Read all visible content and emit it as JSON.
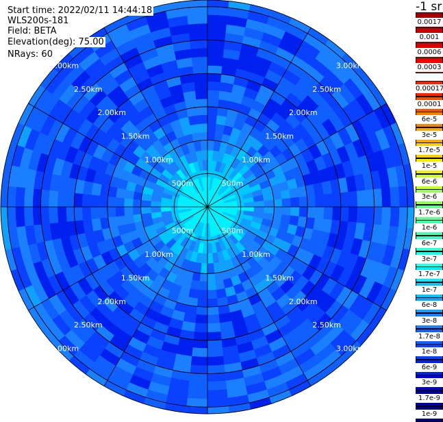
{
  "header": {
    "start_time": "Start time: 2022/02/11 14:44:18",
    "instrument": "WLS200s-181",
    "field": "Field: BETA",
    "elevation": "Elevation(deg): 75.00",
    "nrays": "NRays: 60"
  },
  "colorbar": {
    "units_label": "-1 sr",
    "upper_segment": [
      {
        "label": "0.0017",
        "color": "#a00000"
      },
      {
        "label": "0.001",
        "color": "#c40000"
      },
      {
        "label": "0.0006",
        "color": "#dd0000"
      },
      {
        "label": "0.0003",
        "color": "#f00000"
      }
    ],
    "lower_segment": [
      {
        "label": "0.00017",
        "color": "#ff2000"
      },
      {
        "label": "0.0001",
        "color": "#ff5000"
      },
      {
        "label": "6e-5",
        "color": "#ff8000"
      },
      {
        "label": "3e-5",
        "color": "#ffa800"
      },
      {
        "label": "1.7e-5",
        "color": "#ffd000"
      },
      {
        "label": "1e-5",
        "color": "#f0f000"
      },
      {
        "label": "6e-6",
        "color": "#c8ff20"
      },
      {
        "label": "3e-6",
        "color": "#90ff50"
      },
      {
        "label": "1.7e-6",
        "color": "#60ff90"
      },
      {
        "label": "1e-6",
        "color": "#40ffb0"
      },
      {
        "label": "6e-7",
        "color": "#30ffd0"
      },
      {
        "label": "3e-7",
        "color": "#20ffe8"
      },
      {
        "label": "1.7e-7",
        "color": "#00f0ff"
      },
      {
        "label": "1e-7",
        "color": "#00c8ff"
      },
      {
        "label": "6e-8",
        "color": "#10a0ff"
      },
      {
        "label": "3e-8",
        "color": "#1a80ff"
      },
      {
        "label": "1.7e-8",
        "color": "#1060ff"
      },
      {
        "label": "1e-8",
        "color": "#0a40ff"
      },
      {
        "label": "6e-9",
        "color": "#0020f0"
      },
      {
        "label": "3e-9",
        "color": "#0000d8"
      },
      {
        "label": "1.7e-9",
        "color": "#0000b0"
      },
      {
        "label": "1e-9",
        "color": "#000080"
      }
    ]
  },
  "chart_data": {
    "type": "heatmap",
    "projection": "polar (PPI scan)",
    "field": "BETA",
    "nrays": 60,
    "ring_labels": [
      "500m",
      "1.00km",
      "1.50km",
      "2.00km",
      "2.50km",
      "3.00km"
    ],
    "ring_ranges_km": [
      0.5,
      1.0,
      1.5,
      2.0,
      2.5,
      3.0
    ],
    "max_range_km": 3.1,
    "spokes_deg": [
      0,
      30,
      60,
      90,
      120,
      150,
      180,
      210,
      240,
      270,
      300,
      330
    ],
    "range_gates_km": [
      0.05,
      0.25,
      0.45,
      0.55,
      0.7,
      0.85,
      1.0,
      1.12,
      1.25,
      1.38,
      1.5,
      1.62,
      1.75,
      1.88,
      2.0,
      2.12,
      2.25,
      2.38,
      2.5,
      2.62,
      2.75,
      2.88,
      3.0,
      3.1
    ],
    "radial_profile": [
      {
        "range_km": 0.1,
        "value": "3e-7"
      },
      {
        "range_km": 0.3,
        "value": "1.7e-7"
      },
      {
        "range_km": 0.5,
        "value": "1e-7"
      },
      {
        "range_km": 0.75,
        "value": "6e-8"
      },
      {
        "range_km": 1.0,
        "value": "3e-8"
      },
      {
        "range_km": 1.5,
        "value": "1.7e-8"
      },
      {
        "range_km": 2.0,
        "value": "1e-8"
      },
      {
        "range_km": 3.0,
        "value": "1.7e-8"
      }
    ]
  }
}
